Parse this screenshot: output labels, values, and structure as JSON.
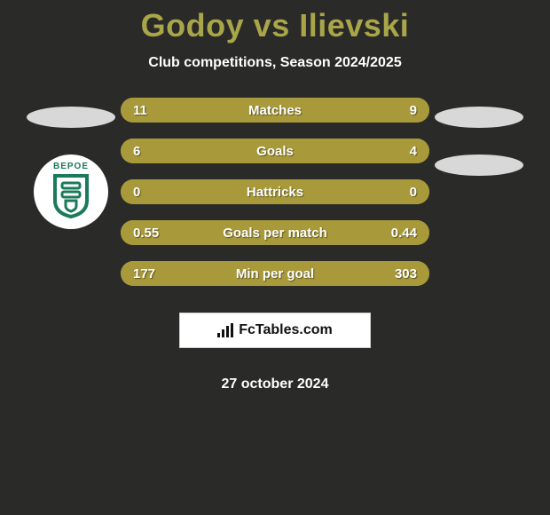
{
  "header": {
    "title": "Godoy vs Ilievski",
    "subtitle": "Club competitions, Season 2024/2025",
    "title_color": "#a9a64a",
    "subtitle_color": "#ffffff"
  },
  "background_color": "#2a2a28",
  "stat_bars": [
    {
      "label": "Matches",
      "left": "11",
      "right": "9",
      "left_color": "#a89a3a",
      "right_color": "#a89a3a",
      "left_pct": 55,
      "right_pct": 45
    },
    {
      "label": "Goals",
      "left": "6",
      "right": "4",
      "left_color": "#a89a3a",
      "right_color": "#a89a3a",
      "left_pct": 60,
      "right_pct": 40
    },
    {
      "label": "Hattricks",
      "left": "0",
      "right": "0",
      "left_color": "#a89a3a",
      "right_color": "#a89a3a",
      "left_pct": 50,
      "right_pct": 50
    },
    {
      "label": "Goals per match",
      "left": "0.55",
      "right": "0.44",
      "left_color": "#a89a3a",
      "right_color": "#a89a3a",
      "left_pct": 56,
      "right_pct": 44
    },
    {
      "label": "Min per goal",
      "left": "177",
      "right": "303",
      "left_color": "#a89a3a",
      "right_color": "#a89a3a",
      "left_pct": 37,
      "right_pct": 63
    }
  ],
  "left_side": {
    "ellipse_color": "#d8d8d8",
    "club": {
      "text": "BEPOE",
      "shield_color": "#1a7a5a",
      "bg_color": "#ffffff"
    }
  },
  "right_side": {
    "ellipse1_color": "#d8d8d8",
    "ellipse2_color": "#d8d8d8"
  },
  "brand": {
    "text": "FcTables.com"
  },
  "date": "27 october 2024",
  "bar_style": {
    "height": 28,
    "radius": 14,
    "font_size": 15,
    "text_shadow": "1px 1px 1px rgba(0,0,0,0.45)"
  }
}
